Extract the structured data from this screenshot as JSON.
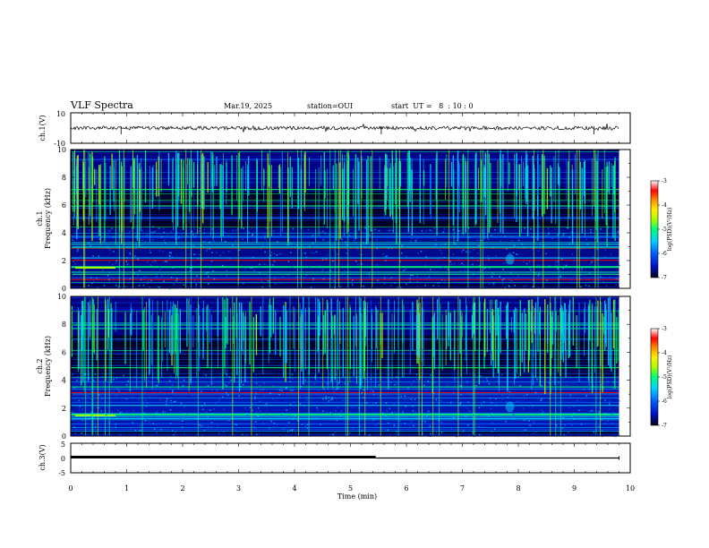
{
  "header": {
    "title": "VLF Spectra",
    "date": "Mar.19, 2025",
    "station": "station=OUI",
    "start": "start  UT =   8  : 10 : 0"
  },
  "colors": {
    "cmap": [
      "#00001a",
      "#00005a",
      "#0010c8",
      "#0060ff",
      "#00d2ff",
      "#00ff7a",
      "#a8ff00",
      "#fff000",
      "#ff9000",
      "#ff0000",
      "#ffffff"
    ]
  },
  "chart_data": [
    {
      "type": "line",
      "name": "ch1-waveform",
      "ylabel": "ch.1(V)",
      "ylim": [
        -10,
        10
      ],
      "ytick_labels": [
        "-10",
        "10"
      ],
      "xlim": [
        0,
        10
      ],
      "description_values": {
        "baseline": 0,
        "amplitude": 1
      }
    },
    {
      "type": "heatmap",
      "name": "ch1-spectrogram",
      "ylabel": "ch.1\nFrequency (kHz)",
      "ylabel_line1": "ch.1",
      "ylabel_line2": "Frequency  (kHz)",
      "ylim": [
        0,
        10
      ],
      "ytick_labels": [
        "0",
        "2",
        "4",
        "6",
        "8",
        "10"
      ],
      "xlim": [
        0,
        10
      ],
      "data_end_min": 9.8,
      "colorbar": {
        "label": "log(PSD)(V²/Hz)",
        "range": [
          -7,
          -3
        ],
        "tick_labels": [
          "-3",
          "-4",
          "-5",
          "-6",
          "-7"
        ]
      }
    },
    {
      "type": "heatmap",
      "name": "ch2-spectrogram",
      "ylabel_line1": "ch.2",
      "ylabel_line2": "Frequency  (kHz)",
      "ylim": [
        0,
        10
      ],
      "ytick_labels": [
        "0",
        "2",
        "4",
        "6",
        "8",
        "10"
      ],
      "xlim": [
        0,
        10
      ],
      "data_end_min": 9.8,
      "colorbar": {
        "label": "log(PSD)(V²/Hz)",
        "range": [
          -7,
          -3
        ],
        "tick_labels": [
          "-3",
          "-4",
          "-5",
          "-6",
          "-7"
        ]
      }
    },
    {
      "type": "line",
      "name": "ch3-waveform",
      "ylabel": "ch.3(V)",
      "ylim": [
        -5,
        5
      ],
      "ytick_labels": [
        "-5",
        "0",
        "5"
      ],
      "xlim": [
        0,
        10
      ],
      "series": [
        {
          "x": [
            0,
            5.45
          ],
          "y": [
            0.3,
            0.3
          ]
        },
        {
          "x": [
            5.45,
            9.8
          ],
          "y": [
            0.0,
            0.0
          ]
        }
      ]
    }
  ],
  "xaxis": {
    "label": "Time  (min)",
    "tick_labels": [
      "0",
      "1",
      "2",
      "3",
      "4",
      "5",
      "6",
      "7",
      "8",
      "9",
      "10"
    ]
  }
}
